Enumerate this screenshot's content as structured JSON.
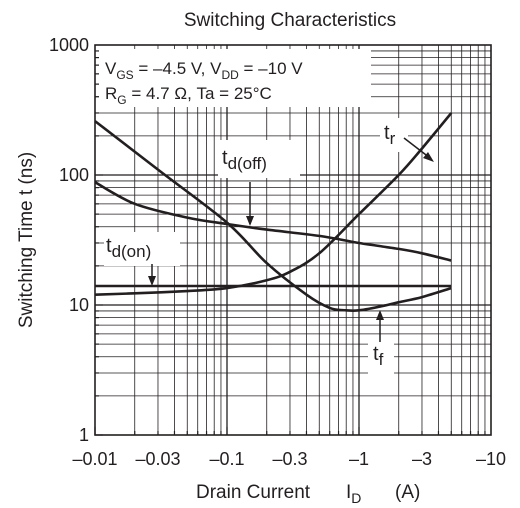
{
  "chart_data": {
    "type": "line",
    "title": "Switching Characteristics",
    "xlabel": "Drain Current",
    "xlabel_symbol": "I",
    "xlabel_sub": "D",
    "xlabel_unit": "(A)",
    "ylabel": "Switching Time t (ns)",
    "x_scale": "log",
    "y_scale": "log",
    "x_axis_direction": "reversed magnitude (negative currents)",
    "xlim": [
      -0.01,
      -10
    ],
    "ylim": [
      1,
      1000
    ],
    "grid": true,
    "x_ticks": [
      {
        "value": -0.01,
        "label": "–0.01"
      },
      {
        "value": -0.03,
        "label": "–0.03"
      },
      {
        "value": -0.1,
        "label": "–0.1"
      },
      {
        "value": -0.3,
        "label": "–0.3"
      },
      {
        "value": -1,
        "label": "–1"
      },
      {
        "value": -3,
        "label": "–3"
      },
      {
        "value": -10,
        "label": "–10"
      }
    ],
    "y_ticks": [
      {
        "value": 1,
        "label": "1"
      },
      {
        "value": 10,
        "label": "10"
      },
      {
        "value": 100,
        "label": "100"
      },
      {
        "value": 1000,
        "label": "1000"
      }
    ],
    "conditions": {
      "line1": {
        "v": "V",
        "gs_sub": "GS",
        "gs_val": " = –4.5 V, V",
        "dd_sub": "DD",
        "dd_val": " = –10 V"
      },
      "line2": {
        "r": "R",
        "g_sub": "G",
        "rest": " = 4.7 Ω, Ta = 25°C"
      }
    },
    "series": [
      {
        "name": "tr",
        "label_main": "t",
        "label_sub": "r",
        "x": [
          -0.01,
          -0.02,
          -0.05,
          -0.1,
          -0.2,
          -0.3,
          -0.5,
          -1,
          -2,
          -3,
          -5
        ],
        "y": [
          12,
          12.3,
          12.8,
          13.5,
          15.5,
          18,
          25,
          50,
          100,
          160,
          300
        ]
      },
      {
        "name": "td(off)",
        "label_main": "t",
        "label_sub": "d(off)",
        "x": [
          -0.01,
          -0.02,
          -0.05,
          -0.1,
          -0.2,
          -0.5,
          -1,
          -2,
          -3,
          -5
        ],
        "y": [
          88,
          60,
          47,
          42,
          38,
          34,
          30,
          27,
          25,
          22
        ]
      },
      {
        "name": "td(on)",
        "label_main": "t",
        "label_sub": "d(on)",
        "x": [
          -0.01,
          -0.1,
          -1,
          -5
        ],
        "y": [
          14,
          14,
          14,
          14
        ]
      },
      {
        "name": "tf",
        "label_main": "t",
        "label_sub": "f",
        "x": [
          -0.01,
          -0.03,
          -0.1,
          -0.2,
          -0.4,
          -0.6,
          -0.8,
          -1,
          -1.5,
          -2,
          -3,
          -5
        ],
        "y": [
          260,
          110,
          43,
          21,
          12,
          9.5,
          9.1,
          9.1,
          9.8,
          10.5,
          11.5,
          13.5
        ]
      }
    ]
  }
}
